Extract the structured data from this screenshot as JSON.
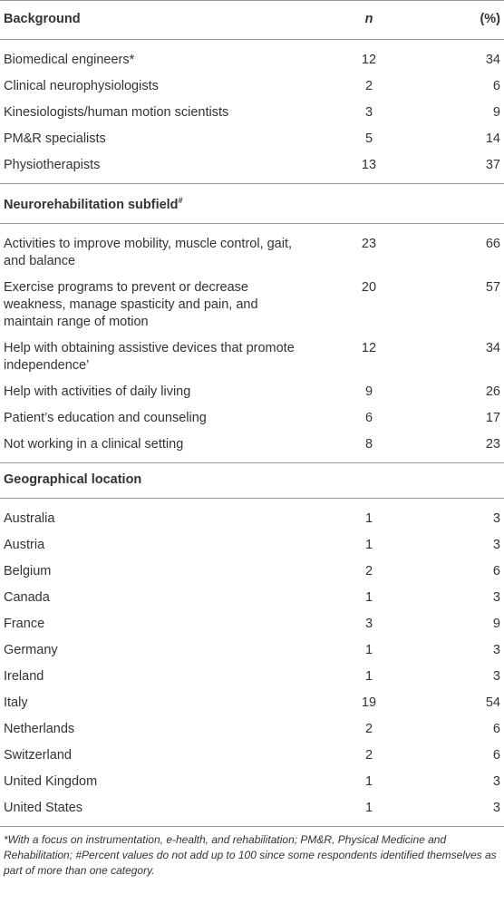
{
  "header": {
    "label": "Background",
    "n": "n",
    "pct": "(%)"
  },
  "sections": [
    {
      "rows": [
        [
          "Biomedical engineers*",
          12,
          34
        ],
        [
          "Clinical neurophysiologists",
          2,
          6
        ],
        [
          "Kinesiologists/human motion scientists",
          3,
          9
        ],
        [
          "PM&R specialists",
          5,
          14
        ],
        [
          "Physiotherapists",
          13,
          37
        ]
      ]
    },
    {
      "title": "Neurorehabilitation subfield",
      "marker": "#",
      "rows": [
        [
          "Activities to improve mobility, muscle control, gait, and balance",
          23,
          66
        ],
        [
          "Exercise programs to prevent or decrease weakness, manage spasticity and pain, and maintain range of motion",
          20,
          57
        ],
        [
          "Help with obtaining assistive devices that promote independence’",
          12,
          34
        ],
        [
          "Help with activities of daily living",
          9,
          26
        ],
        [
          "Patient’s education and counseling",
          6,
          17
        ],
        [
          "Not working in a clinical setting",
          8,
          23
        ]
      ]
    },
    {
      "title": "Geographical location",
      "rows": [
        [
          "Australia",
          1,
          3
        ],
        [
          "Austria",
          1,
          3
        ],
        [
          "Belgium",
          2,
          6
        ],
        [
          "Canada",
          1,
          3
        ],
        [
          "France",
          3,
          9
        ],
        [
          "Germany",
          1,
          3
        ],
        [
          "Ireland",
          1,
          3
        ],
        [
          "Italy",
          19,
          54
        ],
        [
          "Netherlands",
          2,
          6
        ],
        [
          "Switzerland",
          2,
          6
        ],
        [
          "United Kingdom",
          1,
          3
        ],
        [
          "United States",
          1,
          3
        ]
      ]
    }
  ],
  "footnote": "*With a focus on instrumentation, e-health, and rehabilitation; PM&R, Physical Medicine and Rehabilitation; #Percent values do not add up to 100 since some respondents identified themselves as part of more than one category."
}
